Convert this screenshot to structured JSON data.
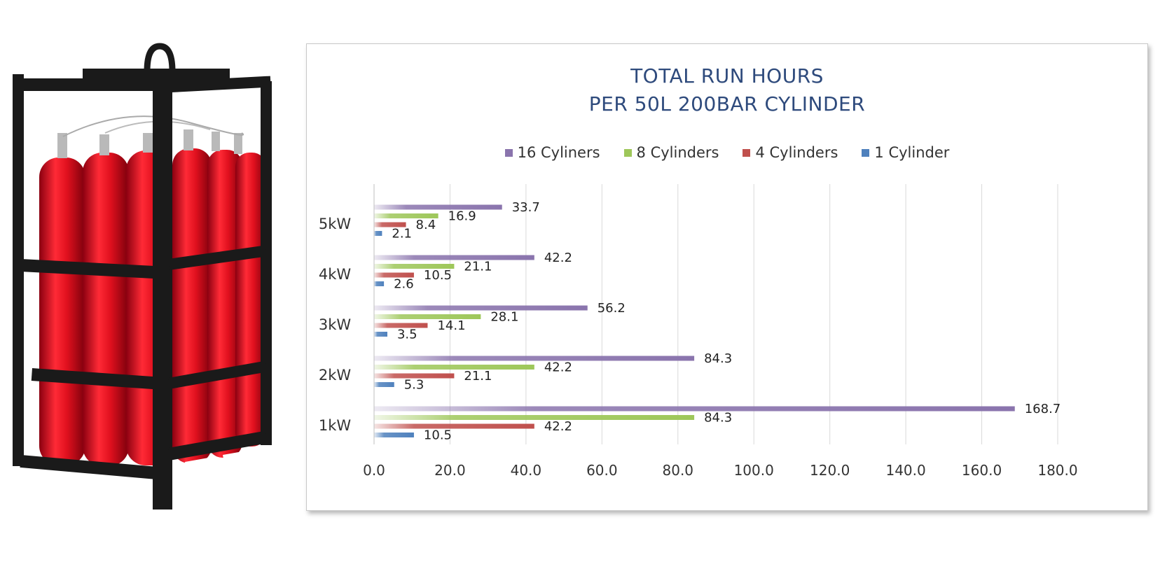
{
  "colors": {
    "series_16": "#8a74ad",
    "series_8": "#9ec75a",
    "series_4": "#c0504d",
    "series_1": "#4f81bd",
    "title": "#2e4a7c",
    "grid": "#d9d9d9",
    "frame_red": "#e0101e",
    "frame_black": "#1a1a1a"
  },
  "product_image": {
    "icon": "gas-cylinder-bundle-icon"
  },
  "chart_data": {
    "type": "bar",
    "orientation": "horizontal",
    "title": [
      "TOTAL RUN HOURS",
      "PER 50L 200BAR CYLINDER"
    ],
    "categories": [
      "5kW",
      "4kW",
      "3kW",
      "2kW",
      "1kW"
    ],
    "series": [
      {
        "name": "16 Cyliners",
        "values": [
          33.7,
          42.2,
          56.2,
          84.3,
          168.7
        ]
      },
      {
        "name": "8 Cylinders",
        "values": [
          16.9,
          21.1,
          28.1,
          42.2,
          84.3
        ]
      },
      {
        "name": "4 Cylinders",
        "values": [
          8.4,
          10.5,
          14.1,
          21.1,
          42.2
        ]
      },
      {
        "name": "1 Cylinder",
        "values": [
          2.1,
          2.6,
          3.5,
          5.3,
          10.5
        ]
      }
    ],
    "xlim": [
      0,
      180
    ],
    "xticks": [
      "0.0",
      "20.0",
      "40.0",
      "60.0",
      "80.0",
      "100.0",
      "120.0",
      "140.0",
      "160.0",
      "180.0"
    ],
    "grid": "vertical",
    "legend_position": "top",
    "data_labels": true
  }
}
